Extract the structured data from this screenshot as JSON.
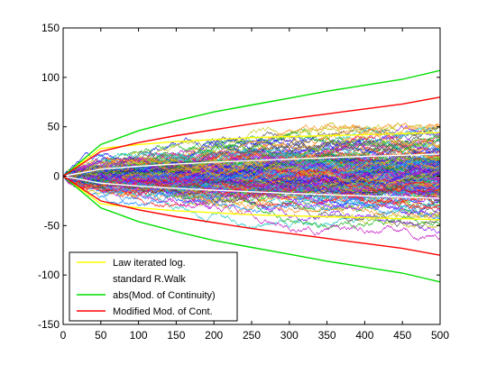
{
  "chart_data": {
    "type": "line",
    "title": "",
    "xlabel": "",
    "ylabel": "",
    "xlim": [
      0,
      500
    ],
    "ylim": [
      -150,
      150
    ],
    "x_ticks": [
      0,
      50,
      100,
      150,
      200,
      250,
      300,
      350,
      400,
      450,
      500
    ],
    "y_ticks": [
      -150,
      -100,
      -50,
      0,
      50,
      100,
      150
    ],
    "x_tick_labels": [
      "0",
      "50",
      "100",
      "150",
      "200",
      "250",
      "300",
      "350",
      "400",
      "450",
      "500"
    ],
    "y_tick_labels": [
      "-150",
      "-100",
      "-50",
      "0",
      "50",
      "100",
      "150"
    ],
    "grid": false,
    "legend_position": "bottom-left",
    "random_walk_paths": {
      "count": 200,
      "steps": 500,
      "step_size": 1
    },
    "series": [
      {
        "name": "Law iterated log.",
        "color": "#ffff00",
        "x": [
          0,
          50,
          100,
          150,
          200,
          250,
          300,
          350,
          400,
          450,
          500
        ],
        "upper": [
          0,
          28,
          32,
          35,
          37,
          39,
          40,
          41,
          42,
          43,
          44
        ],
        "lower": [
          0,
          -28,
          -32,
          -35,
          -37,
          -39,
          -40,
          -41,
          -42,
          -43,
          -44
        ]
      },
      {
        "name": "standard R.Walk",
        "color": "#ffffff",
        "x": [
          0,
          50,
          100,
          150,
          200,
          250,
          300,
          350,
          400,
          450,
          500
        ],
        "upper": [
          0,
          7.1,
          10,
          12.2,
          14.1,
          15.8,
          17.3,
          18.7,
          20,
          21.2,
          22.4
        ],
        "lower": [
          0,
          -7.1,
          -10,
          -12.2,
          -14.1,
          -15.8,
          -17.3,
          -18.7,
          -20,
          -21.2,
          -22.4
        ]
      },
      {
        "name": "abs(Mod. of Continuity)",
        "color": "#00dd00",
        "x": [
          0,
          50,
          100,
          150,
          200,
          250,
          300,
          350,
          400,
          450,
          500
        ],
        "upper": [
          0,
          32,
          46,
          56,
          65,
          72,
          79,
          86,
          92,
          98,
          107
        ],
        "lower": [
          0,
          -32,
          -46,
          -56,
          -65,
          -72,
          -79,
          -86,
          -92,
          -98,
          -107
        ]
      },
      {
        "name": "Modified Mod. of Cont.",
        "color": "#ff0000",
        "x": [
          0,
          50,
          100,
          150,
          200,
          250,
          300,
          350,
          400,
          450,
          500
        ],
        "upper": [
          0,
          25,
          34,
          41,
          47,
          53,
          58,
          63,
          68,
          73,
          80
        ],
        "lower": [
          0,
          -25,
          -34,
          -41,
          -47,
          -53,
          -58,
          -63,
          -68,
          -73,
          -80
        ]
      }
    ]
  }
}
